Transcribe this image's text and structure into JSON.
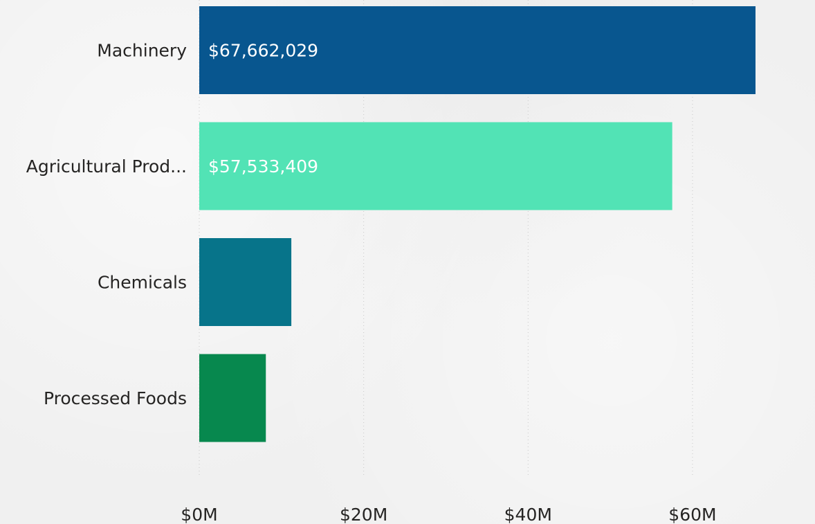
{
  "chart_data": {
    "type": "bar",
    "orientation": "horizontal",
    "categories": [
      "Machinery",
      "Agricultural Prod...",
      "Chemicals",
      "Processed Foods"
    ],
    "values": [
      67662029,
      57533409,
      11200000,
      8100000
    ],
    "data_labels": [
      "$67,662,029",
      "$57,533,409",
      "",
      ""
    ],
    "colors": [
      "#08568f",
      "#52e3b5",
      "#07748a",
      "#07884e"
    ],
    "x_ticks": [
      0,
      20000000,
      40000000,
      60000000
    ],
    "x_tick_labels": [
      "$0M",
      "$20M",
      "$40M",
      "$60M"
    ],
    "xlim": [
      0,
      70000000
    ],
    "grid": true,
    "legend": "none"
  }
}
